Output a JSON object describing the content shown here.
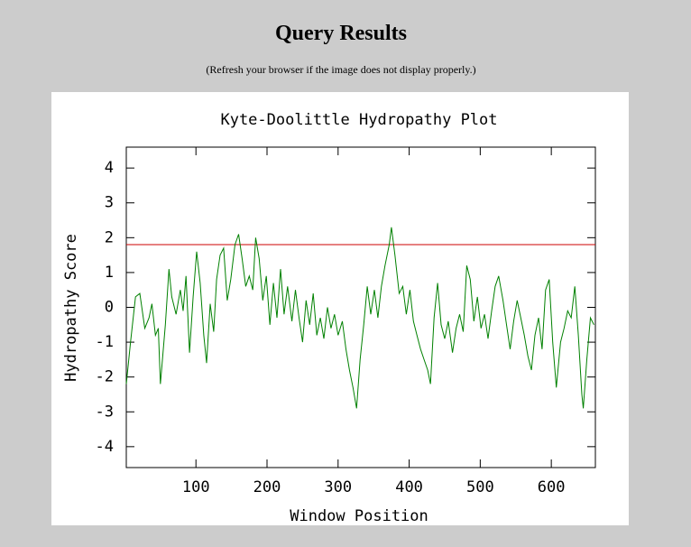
{
  "header": {
    "title": "Query Results",
    "note": "(Refresh your browser if the image does not display properly.)"
  },
  "chart_data": {
    "type": "line",
    "title": "Kyte-Doolittle Hydropathy Plot",
    "xlabel": "Window Position",
    "ylabel": "Hydropathy Score",
    "x": [
      2,
      8,
      15,
      21,
      28,
      34,
      38,
      43,
      47,
      50,
      57,
      62,
      66,
      72,
      78,
      82,
      86,
      91,
      96,
      101,
      106,
      111,
      115,
      120,
      125,
      129,
      134,
      139,
      144,
      149,
      155,
      160,
      165,
      170,
      175,
      180,
      184,
      189,
      194,
      199,
      204,
      209,
      214,
      219,
      224,
      229,
      235,
      240,
      245,
      250,
      255,
      260,
      265,
      270,
      275,
      280,
      285,
      290,
      295,
      300,
      306,
      311,
      316,
      321,
      326,
      331,
      336,
      341,
      346,
      351,
      356,
      361,
      366,
      372,
      375,
      380,
      386,
      391,
      396,
      401,
      406,
      411,
      416,
      421,
      426,
      430,
      435,
      440,
      445,
      450,
      455,
      461,
      466,
      471,
      476,
      481,
      486,
      491,
      496,
      501,
      506,
      511,
      516,
      521,
      526,
      532,
      537,
      542,
      547,
      552,
      557,
      562,
      567,
      572,
      577,
      582,
      587,
      592,
      597,
      602,
      607,
      613,
      618,
      623,
      628,
      633,
      638,
      643,
      645,
      650,
      655,
      660
    ],
    "series": [
      {
        "name": "Hydropathy Score",
        "color": "#008000",
        "values": [
          -2.2,
          -1.0,
          0.3,
          0.4,
          -0.6,
          -0.3,
          0.1,
          -0.8,
          -0.6,
          -2.2,
          -0.5,
          1.1,
          0.3,
          -0.2,
          0.5,
          -0.1,
          0.9,
          -1.3,
          0.3,
          1.6,
          0.7,
          -0.8,
          -1.6,
          0.1,
          -0.7,
          0.8,
          1.5,
          1.7,
          0.2,
          0.8,
          1.8,
          2.1,
          1.4,
          0.6,
          0.9,
          0.5,
          2.0,
          1.4,
          0.2,
          0.9,
          -0.5,
          0.7,
          -0.3,
          1.1,
          -0.2,
          0.6,
          -0.4,
          0.5,
          -0.3,
          -1.0,
          0.2,
          -0.5,
          0.4,
          -0.8,
          -0.3,
          -0.9,
          0.0,
          -0.6,
          -0.2,
          -0.8,
          -0.4,
          -1.2,
          -1.8,
          -2.3,
          -2.9,
          -1.5,
          -0.5,
          0.6,
          -0.2,
          0.5,
          -0.3,
          0.6,
          1.2,
          1.8,
          2.3,
          1.5,
          0.4,
          0.6,
          -0.2,
          0.5,
          -0.4,
          -0.8,
          -1.2,
          -1.5,
          -1.8,
          -2.2,
          -0.3,
          0.7,
          -0.5,
          -0.9,
          -0.4,
          -1.3,
          -0.6,
          -0.2,
          -0.7,
          1.2,
          0.8,
          -0.4,
          0.3,
          -0.6,
          -0.2,
          -0.9,
          -0.1,
          0.6,
          0.9,
          0.2,
          -0.5,
          -1.2,
          -0.4,
          0.2,
          -0.3,
          -0.8,
          -1.4,
          -1.8,
          -0.8,
          -0.3,
          -1.2,
          0.5,
          0.8,
          -1.0,
          -2.3,
          -1.0,
          -0.6,
          -0.1,
          -0.3,
          0.6,
          -0.8,
          -2.5,
          -2.9,
          -1.5,
          -0.3,
          -0.5
        ]
      }
    ],
    "threshold": 1.8,
    "threshold_color": "#cc0000",
    "xlim": [
      2,
      662
    ],
    "xticks": [
      100,
      200,
      300,
      400,
      500,
      600
    ],
    "ylim": [
      -4.6,
      4.6
    ],
    "yticks": [
      -4,
      -3,
      -2,
      -1,
      0,
      1,
      2,
      3,
      4
    ]
  }
}
